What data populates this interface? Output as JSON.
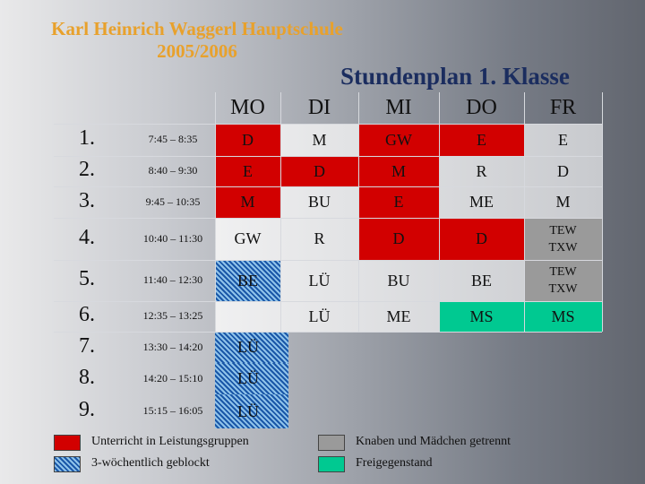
{
  "header": {
    "school_line1": "Karl Heinrich Waggerl Hauptschule",
    "school_line2": "2005/2006",
    "plan_title": "Stundenplan 1. Klasse"
  },
  "days": [
    "MO",
    "DI",
    "MI",
    "DO",
    "FR"
  ],
  "rows": [
    {
      "num": "1.",
      "time": "7:45 – 8:35",
      "cells": [
        "D",
        "M",
        "GW",
        "E",
        "E"
      ]
    },
    {
      "num": "2.",
      "time": "8:40 – 9:30",
      "cells": [
        "E",
        "D",
        "M",
        "R",
        "D"
      ]
    },
    {
      "num": "3.",
      "time": "9:45 – 10:35",
      "cells": [
        "M",
        "BU",
        "E",
        "ME",
        "M"
      ]
    },
    {
      "num": "4.",
      "time": "10:40 – 11:30",
      "cells": [
        "GW",
        "R",
        "D",
        "D",
        "TEW TXW"
      ]
    },
    {
      "num": "5.",
      "time": "11:40 – 12:30",
      "cells": [
        "BE",
        "LÜ",
        "BU",
        "BE",
        "TEW TXW"
      ]
    },
    {
      "num": "6.",
      "time": "12:35 – 13:25",
      "cells": [
        "",
        "LÜ",
        "ME",
        "MS",
        "MS"
      ]
    },
    {
      "num": "7.",
      "time": "13:30 – 14:20",
      "cells": [
        "LÜ",
        "",
        "",
        "",
        ""
      ]
    },
    {
      "num": "8.",
      "time": "14:20 – 15:10",
      "cells": [
        "LÜ",
        "",
        "",
        "",
        ""
      ]
    },
    {
      "num": "9.",
      "time": "15:15 – 16:05",
      "cells": [
        "LÜ",
        "",
        "",
        "",
        ""
      ]
    }
  ],
  "legend": {
    "group": "Unterricht in Leistungsgruppen",
    "weekly": "3-wöchentlich geblockt",
    "separate": "Knaben und Mädchen getrennt",
    "optional": "Freigegenstand"
  },
  "colors": {
    "group_red": "#d20000",
    "optional_green": "#00c991",
    "separate_gray": "#9a9a9a",
    "title_orange": "#e8a12c",
    "title_navy": "#1b2d5f"
  }
}
